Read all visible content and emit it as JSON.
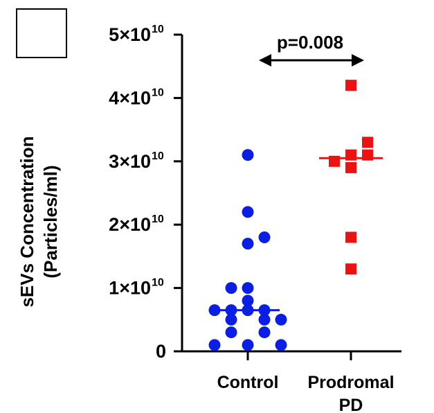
{
  "chart_data": {
    "type": "scatter",
    "ylabel_line1": "sEVs Concentration",
    "ylabel_line2": "(Particles/ml)",
    "ylim": [
      0,
      50000000000
    ],
    "yticks": [
      {
        "value": 0,
        "mantissa": "0",
        "exponent": ""
      },
      {
        "value": 10000000000,
        "mantissa": "1×10",
        "exponent": "10"
      },
      {
        "value": 20000000000,
        "mantissa": "2×10",
        "exponent": "10"
      },
      {
        "value": 30000000000,
        "mantissa": "3×10",
        "exponent": "10"
      },
      {
        "value": 40000000000,
        "mantissa": "4×10",
        "exponent": "10"
      },
      {
        "value": 50000000000,
        "mantissa": "5×10",
        "exponent": "10"
      }
    ],
    "categories": [
      {
        "line1": "Control",
        "line2": ""
      },
      {
        "line1": "Prodromal",
        "line2": "PD"
      }
    ],
    "series": [
      {
        "category": 0,
        "marker": "circle",
        "color": "#0a1ee6",
        "median": 6500000000,
        "points": [
          {
            "y": 31000000000,
            "jitter": 0
          },
          {
            "y": 22000000000,
            "jitter": 0
          },
          {
            "y": 18000000000,
            "jitter": 1
          },
          {
            "y": 17000000000,
            "jitter": 0
          },
          {
            "y": 10000000000,
            "jitter": -1
          },
          {
            "y": 10000000000,
            "jitter": 0
          },
          {
            "y": 8000000000,
            "jitter": 0
          },
          {
            "y": 6500000000,
            "jitter": -2
          },
          {
            "y": 6500000000,
            "jitter": -1
          },
          {
            "y": 6500000000,
            "jitter": 0
          },
          {
            "y": 6500000000,
            "jitter": 1
          },
          {
            "y": 5000000000,
            "jitter": -1
          },
          {
            "y": 5000000000,
            "jitter": 1
          },
          {
            "y": 5000000000,
            "jitter": 2
          },
          {
            "y": 3000000000,
            "jitter": -1
          },
          {
            "y": 3000000000,
            "jitter": 1
          },
          {
            "y": 1000000000,
            "jitter": -2
          },
          {
            "y": 1000000000,
            "jitter": 0
          },
          {
            "y": 1000000000,
            "jitter": 2
          }
        ]
      },
      {
        "category": 1,
        "marker": "square",
        "color": "#ee1111",
        "median": 30500000000,
        "points": [
          {
            "y": 42000000000,
            "jitter": 0
          },
          {
            "y": 33000000000,
            "jitter": 1
          },
          {
            "y": 31000000000,
            "jitter": 0
          },
          {
            "y": 30000000000,
            "jitter": -1
          },
          {
            "y": 31000000000,
            "jitter": 1
          },
          {
            "y": 29000000000,
            "jitter": 0
          },
          {
            "y": 18000000000,
            "jitter": 0
          },
          {
            "y": 13000000000,
            "jitter": 0
          }
        ]
      }
    ],
    "annotation": {
      "text": "p=0.008",
      "from": 0,
      "to": 1
    }
  }
}
